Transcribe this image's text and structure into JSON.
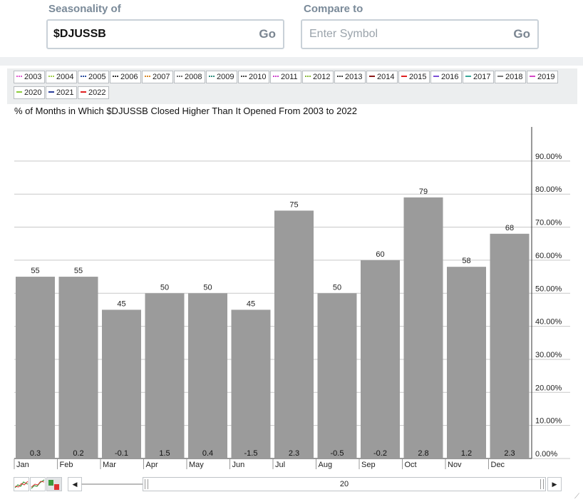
{
  "form": {
    "seasonality_label": "Seasonality of",
    "seasonality_value": "$DJUSSB",
    "compare_label": "Compare to",
    "compare_placeholder": "Enter Symbol",
    "go_label": "Go"
  },
  "legend": [
    {
      "label": "2003",
      "color": "#e05ad1",
      "style": "dotted"
    },
    {
      "label": "2004",
      "color": "#9fcf4a",
      "style": "dotted"
    },
    {
      "label": "2005",
      "color": "#2a4ea0",
      "style": "dotted"
    },
    {
      "label": "2006",
      "color": "#333333",
      "style": "dotted"
    },
    {
      "label": "2007",
      "color": "#d98a2b",
      "style": "dotted"
    },
    {
      "label": "2008",
      "color": "#6a6a6a",
      "style": "dotted"
    },
    {
      "label": "2009",
      "color": "#2e8c7c",
      "style": "dotted"
    },
    {
      "label": "2010",
      "color": "#444444",
      "style": "dotted"
    },
    {
      "label": "2011",
      "color": "#cc44cc",
      "style": "dotted"
    },
    {
      "label": "2012",
      "color": "#88b83a",
      "style": "dotted"
    },
    {
      "label": "2013",
      "color": "#3a3a3a",
      "style": "dotted"
    },
    {
      "label": "2014",
      "color": "#8b1a1a",
      "style": "solid"
    },
    {
      "label": "2015",
      "color": "#e02020",
      "style": "solid"
    },
    {
      "label": "2016",
      "color": "#7b4fd6",
      "style": "solid"
    },
    {
      "label": "2017",
      "color": "#3aa89a",
      "style": "solid"
    },
    {
      "label": "2018",
      "color": "#777777",
      "style": "solid"
    },
    {
      "label": "2019",
      "color": "#d447c6",
      "style": "solid"
    },
    {
      "label": "2020",
      "color": "#8ccc3a",
      "style": "solid"
    },
    {
      "label": "2021",
      "color": "#2a3e9a",
      "style": "solid"
    },
    {
      "label": "2022",
      "color": "#e02020",
      "style": "solid"
    }
  ],
  "chart_title": "% of Months in Which $DJUSSB Closed Higher Than It Opened From 2003 to 2022",
  "chart_data": {
    "type": "bar",
    "categories": [
      "Jan",
      "Feb",
      "Mar",
      "Apr",
      "May",
      "Jun",
      "Jul",
      "Aug",
      "Sep",
      "Oct",
      "Nov",
      "Dec"
    ],
    "values": [
      55,
      55,
      45,
      50,
      50,
      45,
      75,
      50,
      60,
      79,
      58,
      68
    ],
    "value_labels": [
      "55",
      "55",
      "45",
      "50",
      "50",
      "45",
      "75",
      "50",
      "60",
      "79",
      "58",
      "68"
    ],
    "avg_change_labels": [
      "0.3",
      "0.2",
      "-0.1",
      "1.5",
      "0.4",
      "-1.5",
      "2.3",
      "-0.5",
      "-0.2",
      "2.8",
      "1.2",
      "2.3"
    ],
    "y_ticks": [
      0,
      10,
      20,
      30,
      40,
      50,
      60,
      70,
      80,
      90
    ],
    "y_tick_labels": [
      "0.00%",
      "10.00%",
      "20.00%",
      "30.00%",
      "40.00%",
      "50.00%",
      "60.00%",
      "70.00%",
      "80.00%",
      "90.00%"
    ],
    "ylim": [
      0,
      100
    ],
    "y_axis_side": "right",
    "grid": true,
    "bar_color": "#9b9b9b"
  },
  "scrollbar": {
    "value_label": "20",
    "left_arrow": "◀",
    "right_arrow": "▶"
  },
  "chart_type_icons": [
    "line-chart-icon",
    "performance-chart-icon",
    "bar-chart-icon"
  ]
}
